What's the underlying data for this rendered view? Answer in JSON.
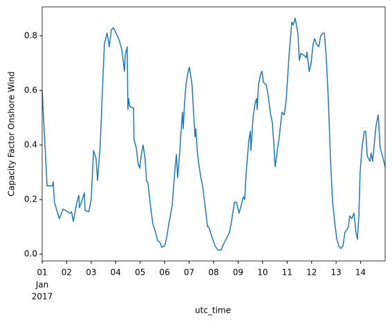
{
  "chart_data": {
    "type": "line",
    "xlabel": "utc_time",
    "ylabel": "Capacity Factor Onshore Wind",
    "x": [
      1,
      1.2,
      1.42,
      1.45,
      1.5,
      1.7,
      1.85,
      1.96,
      2.13,
      2.2,
      2.27,
      2.44,
      2.5,
      2.52,
      2.6,
      2.72,
      2.75,
      2.9,
      3.0,
      3.1,
      3.2,
      3.26,
      3.37,
      3.46,
      3.54,
      3.65,
      3.74,
      3.82,
      3.9,
      4.02,
      4.16,
      4.25,
      4.36,
      4.39,
      4.47,
      4.5,
      4.53,
      4.58,
      4.73,
      4.75,
      4.84,
      4.92,
      4.98,
      5.04,
      5.12,
      5.2,
      5.26,
      5.32,
      5.43,
      5.52,
      5.63,
      5.71,
      5.8,
      5.88,
      6.0,
      6.08,
      6.17,
      6.31,
      6.42,
      6.48,
      6.53,
      6.62,
      6.67,
      6.73,
      6.76,
      6.81,
      6.87,
      6.96,
      7.01,
      7.12,
      7.18,
      7.24,
      7.27,
      7.35,
      7.46,
      7.55,
      7.66,
      7.75,
      7.8,
      7.94,
      8.06,
      8.17,
      8.31,
      8.42,
      8.54,
      8.65,
      8.73,
      8.85,
      8.93,
      9.04,
      9.13,
      9.21,
      9.27,
      9.33,
      9.44,
      9.5,
      9.52,
      9.61,
      9.69,
      9.75,
      9.78,
      9.83,
      9.92,
      9.98,
      10.03,
      10.15,
      10.23,
      10.31,
      10.4,
      10.46,
      10.51,
      10.6,
      10.68,
      10.79,
      10.88,
      10.96,
      11.08,
      11.19,
      11.25,
      11.33,
      11.44,
      11.5,
      11.56,
      11.67,
      11.78,
      11.81,
      11.9,
      11.98,
      12.06,
      12.12,
      12.2,
      12.29,
      12.37,
      12.46,
      12.52,
      12.6,
      12.69,
      12.77,
      12.85,
      12.94,
      13.02,
      13.11,
      13.19,
      13.28,
      13.36,
      13.45,
      13.5,
      13.56,
      13.64,
      13.73,
      13.81,
      13.87,
      13.93,
      13.98,
      14.07,
      14.15,
      14.21,
      14.27,
      14.38,
      14.43,
      14.49,
      14.63,
      14.72,
      14.8,
      14.92,
      15.0
    ],
    "series": [
      {
        "name": "Capacity Factor Onshore Wind",
        "color": "#1f77b4",
        "values": [
          0.6,
          0.25,
          0.25,
          0.265,
          0.19,
          0.13,
          0.165,
          0.16,
          0.15,
          0.155,
          0.12,
          0.2,
          0.215,
          0.17,
          0.19,
          0.225,
          0.16,
          0.155,
          0.2,
          0.38,
          0.35,
          0.27,
          0.4,
          0.6,
          0.77,
          0.81,
          0.76,
          0.82,
          0.83,
          0.81,
          0.78,
          0.75,
          0.67,
          0.73,
          0.76,
          0.53,
          0.57,
          0.54,
          0.535,
          0.42,
          0.39,
          0.33,
          0.315,
          0.36,
          0.4,
          0.35,
          0.27,
          0.26,
          0.17,
          0.11,
          0.08,
          0.05,
          0.045,
          0.025,
          0.03,
          0.06,
          0.11,
          0.18,
          0.31,
          0.365,
          0.28,
          0.38,
          0.45,
          0.52,
          0.46,
          0.55,
          0.62,
          0.67,
          0.685,
          0.62,
          0.52,
          0.43,
          0.46,
          0.36,
          0.29,
          0.25,
          0.17,
          0.1,
          0.1,
          0.06,
          0.03,
          0.015,
          0.015,
          0.04,
          0.06,
          0.08,
          0.12,
          0.19,
          0.19,
          0.15,
          0.18,
          0.21,
          0.2,
          0.3,
          0.42,
          0.45,
          0.38,
          0.5,
          0.55,
          0.57,
          0.53,
          0.62,
          0.66,
          0.67,
          0.63,
          0.62,
          0.58,
          0.52,
          0.48,
          0.4,
          0.32,
          0.38,
          0.43,
          0.52,
          0.51,
          0.56,
          0.73,
          0.85,
          0.84,
          0.865,
          0.81,
          0.71,
          0.735,
          0.73,
          0.72,
          0.74,
          0.67,
          0.7,
          0.77,
          0.79,
          0.77,
          0.76,
          0.8,
          0.81,
          0.81,
          0.72,
          0.55,
          0.35,
          0.2,
          0.12,
          0.06,
          0.03,
          0.02,
          0.03,
          0.08,
          0.09,
          0.1,
          0.14,
          0.13,
          0.15,
          0.08,
          0.055,
          0.14,
          0.3,
          0.4,
          0.45,
          0.45,
          0.36,
          0.34,
          0.37,
          0.34,
          0.47,
          0.51,
          0.39,
          0.35,
          0.32
        ]
      }
    ],
    "xlim": [
      1,
      15
    ],
    "xticks": [
      {
        "value": 1,
        "label": "01"
      },
      {
        "value": 2,
        "label": "02"
      },
      {
        "value": 3,
        "label": "03"
      },
      {
        "value": 4,
        "label": "04"
      },
      {
        "value": 5,
        "label": "05"
      },
      {
        "value": 6,
        "label": "06"
      },
      {
        "value": 7,
        "label": "07"
      },
      {
        "value": 8,
        "label": "08"
      },
      {
        "value": 9,
        "label": "09"
      },
      {
        "value": 10,
        "label": "10"
      },
      {
        "value": 11,
        "label": "11"
      },
      {
        "value": 12,
        "label": "12"
      },
      {
        "value": 13,
        "label": "13"
      },
      {
        "value": 14,
        "label": "14"
      }
    ],
    "x_tick_sublabels": [
      "Jan",
      "2017"
    ],
    "ylim": [
      -0.025,
      0.906
    ],
    "yticks": [
      {
        "value": 0,
        "label": "0.0"
      },
      0.2,
      0.4,
      0.6,
      0.8
    ],
    "grid": false
  }
}
